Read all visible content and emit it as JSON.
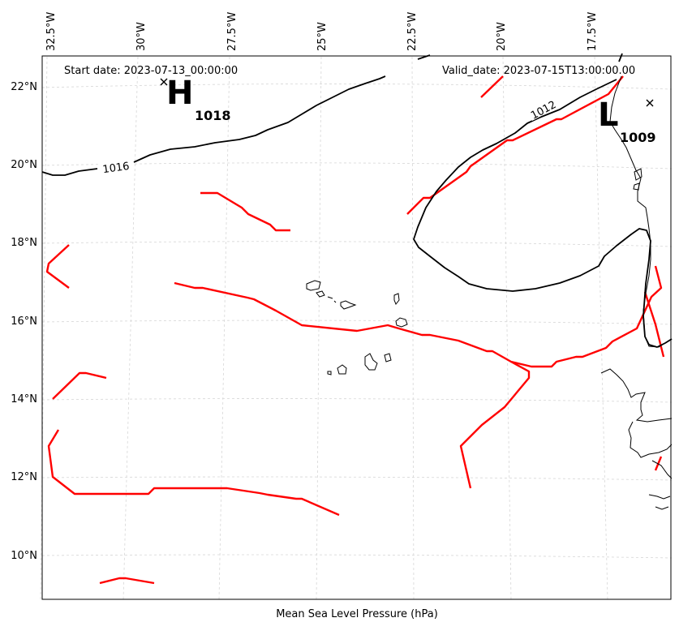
{
  "header": {
    "start_date": "Start date: 2023-07-13_00:00:00",
    "valid_date": "Valid_date: 2023-07-15T13:00:00.00"
  },
  "footer": {
    "xlabel": "Mean Sea Level Pressure (hPa)"
  },
  "axes": {
    "lon_ticks": [
      "32.5°W",
      "30°W",
      "27.5°W",
      "25°W",
      "22.5°W",
      "20°W",
      "17.5°W"
    ],
    "lat_ticks": [
      "22°N",
      "20°N",
      "18°N",
      "16°N",
      "14°N",
      "12°N",
      "10°N"
    ]
  },
  "pressure_centers": {
    "high": {
      "symbol": "H",
      "value": "1018"
    },
    "low": {
      "symbol": "L",
      "value": "1009"
    }
  },
  "isobar_labels": {
    "i1016": "1016",
    "i1012": "1012"
  },
  "colors": {
    "isobar": "#000000",
    "trough": "#ff0000",
    "grid": "#cccccc"
  }
}
